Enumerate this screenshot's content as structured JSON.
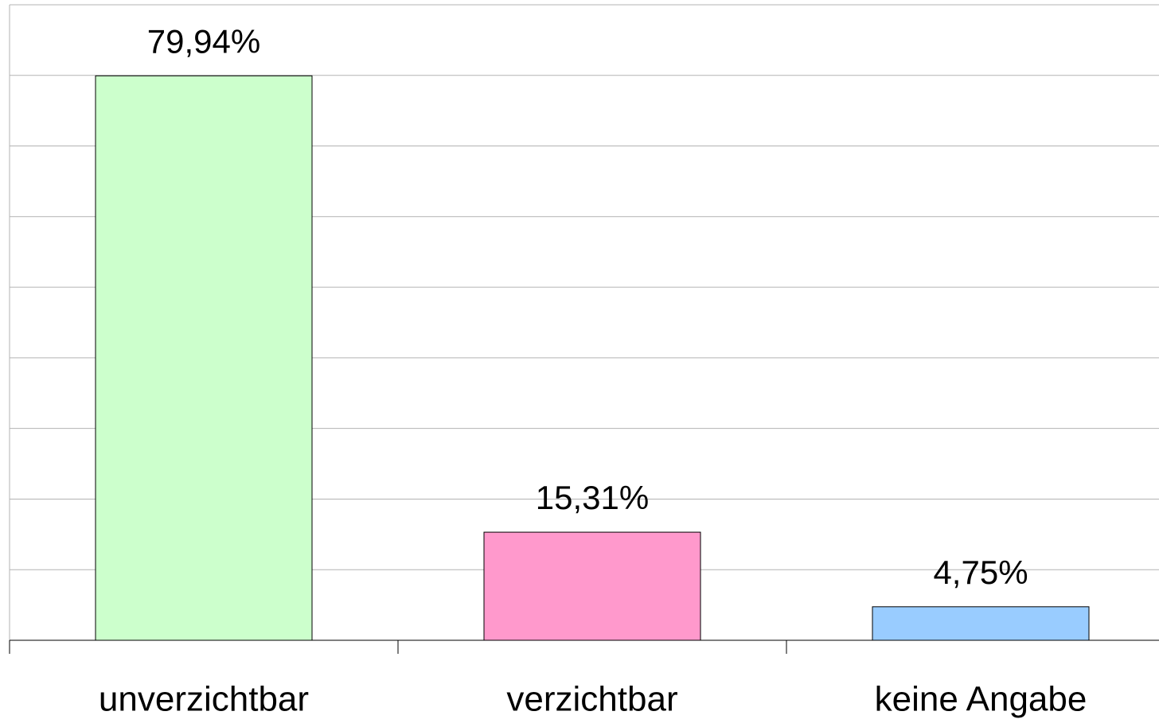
{
  "chart_data": {
    "type": "bar",
    "categories": [
      "unverzichtbar",
      "verzichtbar",
      "keine Angabe"
    ],
    "values": [
      79.94,
      15.31,
      4.75
    ],
    "value_labels": [
      "79,94%",
      "15,31%",
      "4,75%"
    ],
    "colors": [
      "#ccffcc",
      "#ff99cc",
      "#99ccff"
    ],
    "ylim": [
      0,
      90
    ],
    "yticks": [
      0,
      10,
      20,
      30,
      40,
      50,
      60,
      70,
      80,
      90
    ],
    "grid": true
  }
}
